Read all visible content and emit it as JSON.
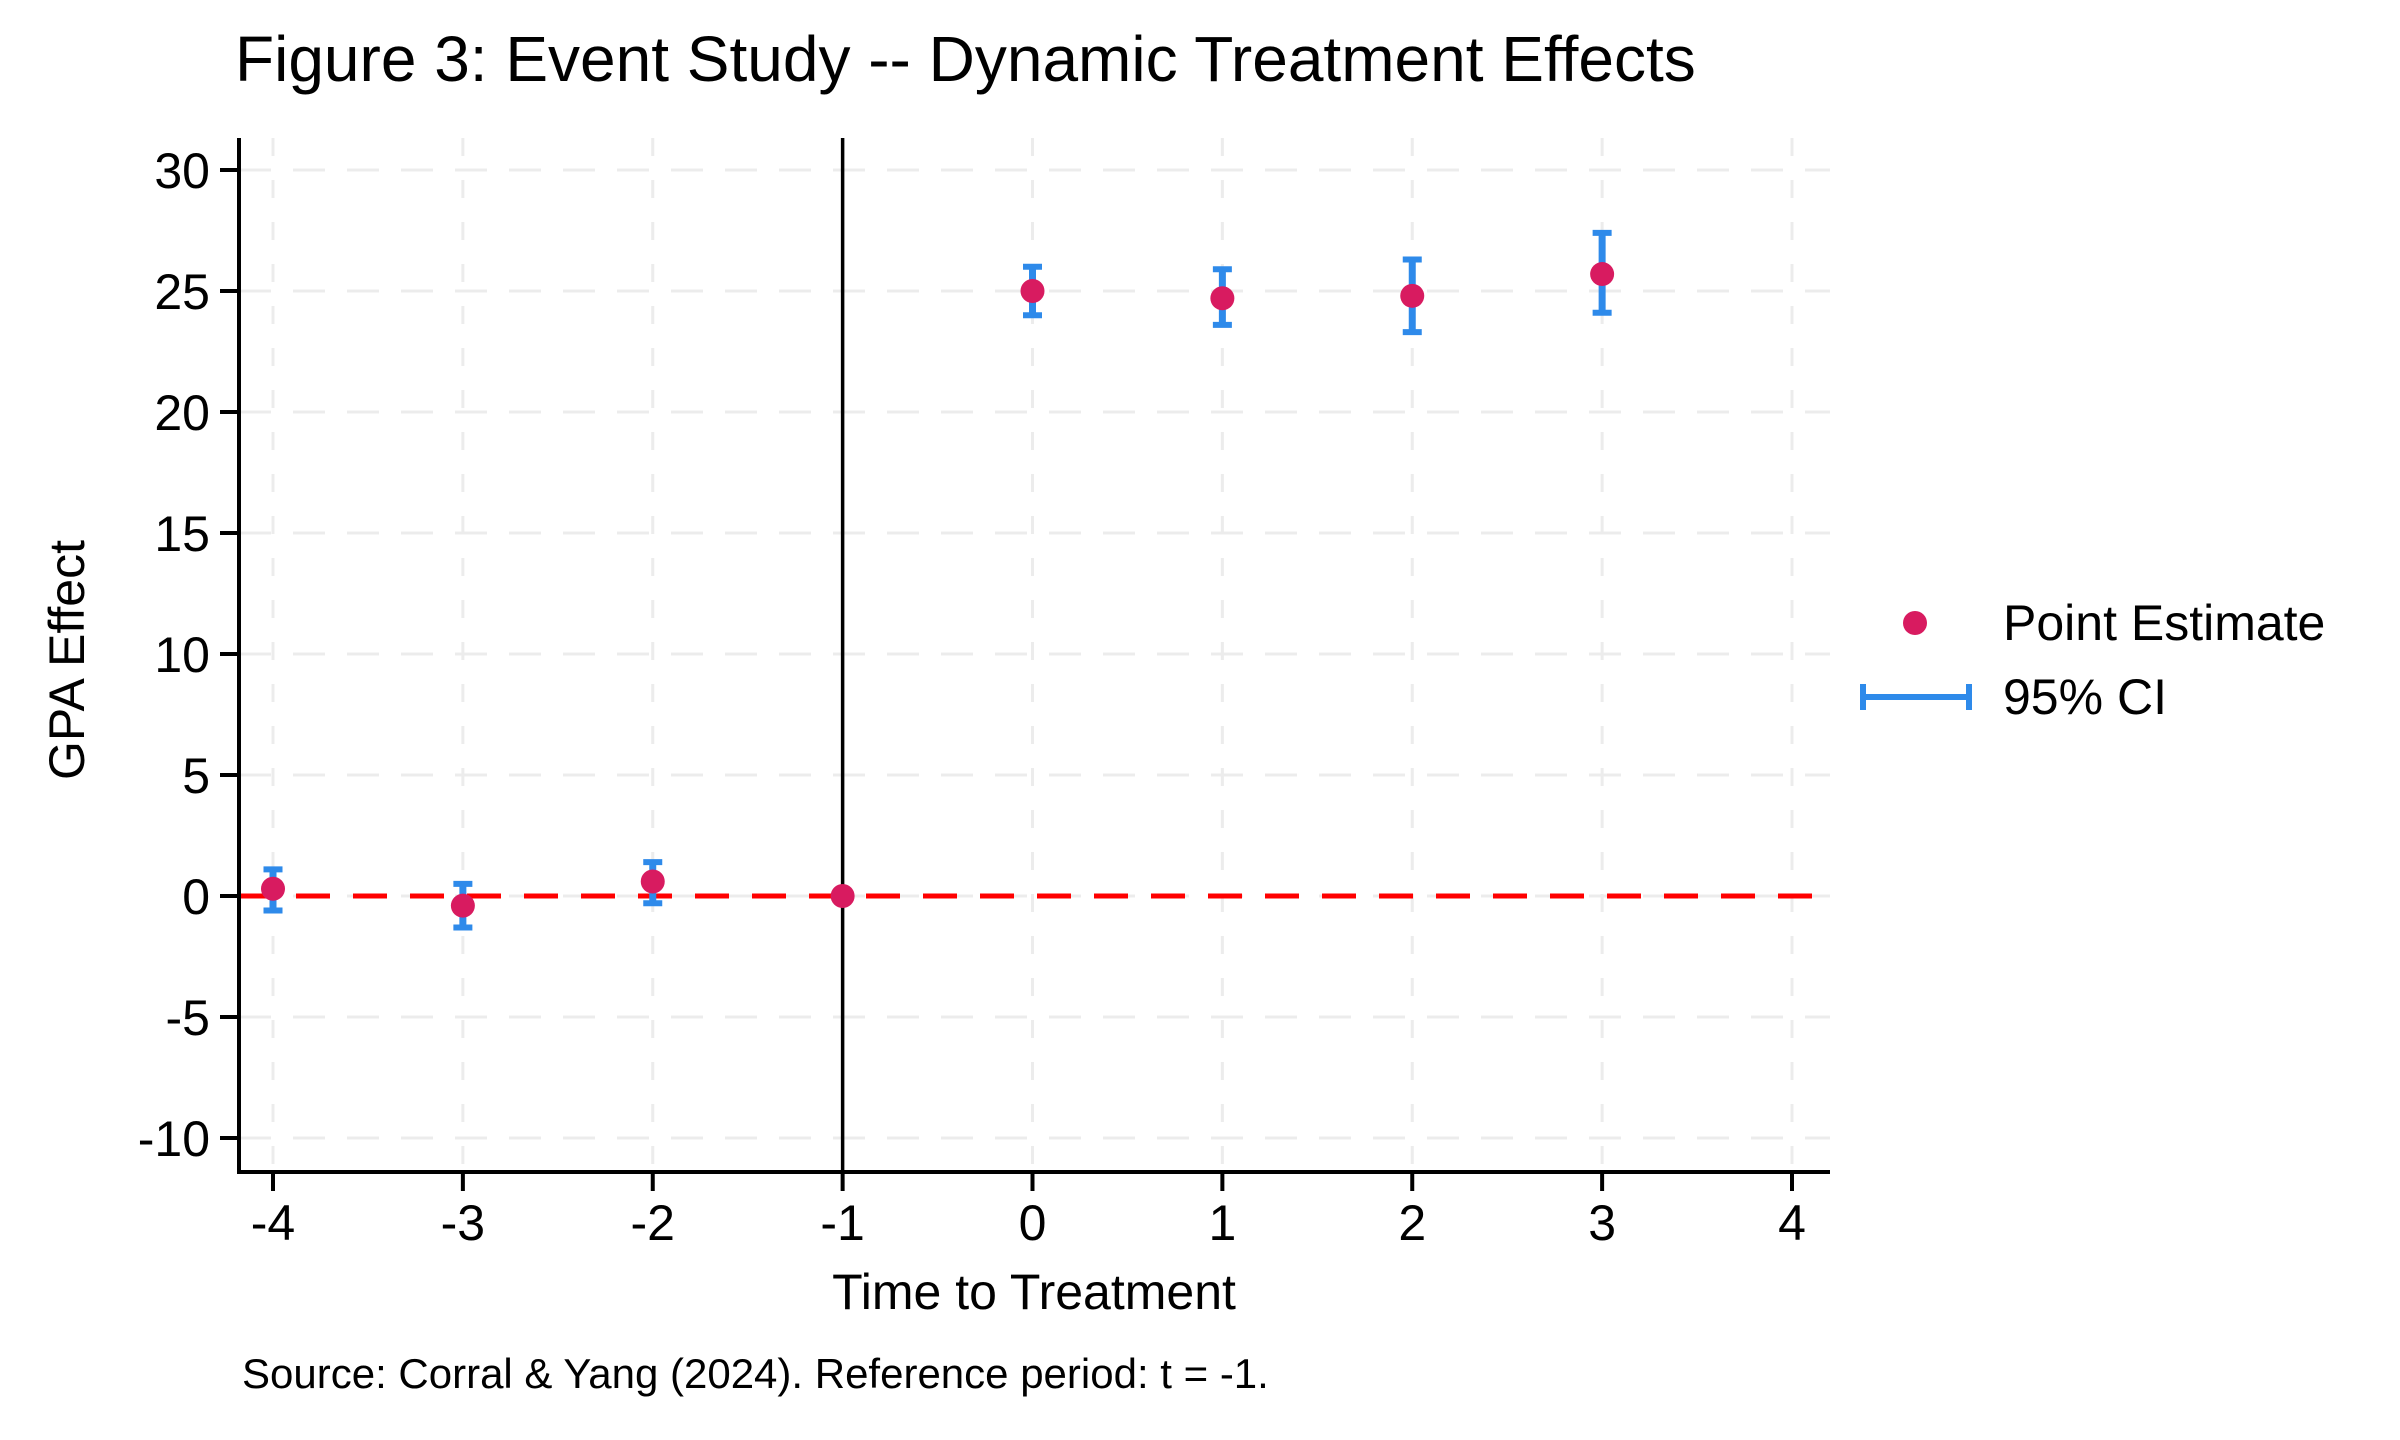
{
  "source_note": "Source: Corral & Yang (2024). Reference period: t = -1.",
  "chart_data": {
    "type": "scatter",
    "title": "Figure 3: Event Study -- Dynamic Treatment Effects",
    "xlabel": "Time to Treatment",
    "ylabel": "GPA Effect",
    "x": [
      -4,
      -3,
      -2,
      -1,
      0,
      1,
      2,
      3
    ],
    "series": [
      {
        "name": "Point Estimate",
        "values": [
          0.3,
          -0.4,
          0.6,
          0.0,
          25.0,
          24.7,
          24.8,
          25.7
        ],
        "ci_low": [
          -0.6,
          -1.3,
          -0.3,
          null,
          24.0,
          23.6,
          23.3,
          24.1
        ],
        "ci_high": [
          1.1,
          0.5,
          1.4,
          null,
          26.0,
          25.9,
          26.3,
          27.4
        ]
      }
    ],
    "ci_level": "95% CI",
    "reference_period": -1,
    "reference_lines": {
      "horizontal_y": 0,
      "vertical_x": -1
    },
    "xticks": [
      -4,
      -3,
      -2,
      -1,
      0,
      1,
      2,
      3,
      4
    ],
    "xtick_labels": [
      "-4",
      "-3",
      "-2",
      "-1",
      "0",
      "1",
      "2",
      "3",
      "4"
    ],
    "yticks": [
      30,
      25,
      20,
      15,
      10,
      5,
      0,
      -5,
      -10
    ],
    "ytick_labels": [
      "30",
      "25",
      "20",
      "15",
      "10",
      "5",
      "0",
      "-5",
      "-10"
    ],
    "xlim": [
      -4.2,
      4.2
    ],
    "ylim": [
      -11.5,
      31.3
    ],
    "grid": true,
    "legend_position": "right",
    "colors": {
      "point": "#D81B60",
      "ci": "#2E8AEA",
      "zero_line": "#FF0000",
      "treatment_line": "#000000",
      "grid": "#ECECEC",
      "axis": "#000000"
    }
  }
}
